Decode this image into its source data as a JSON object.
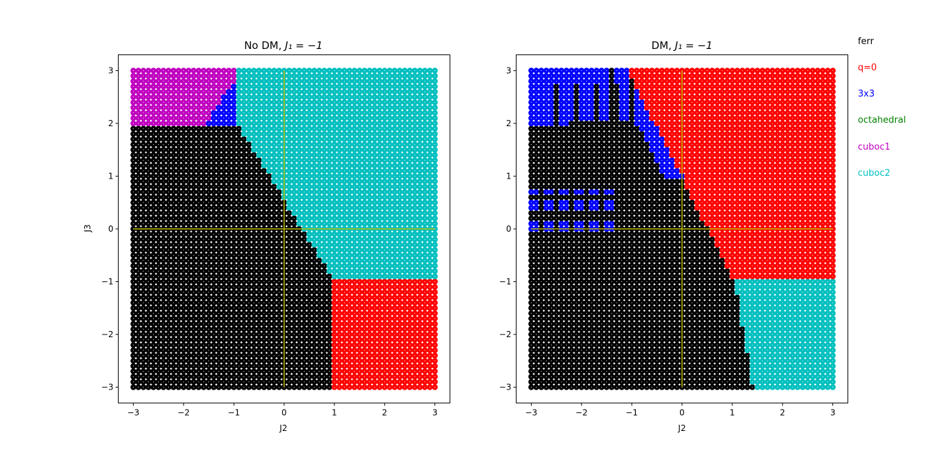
{
  "legend": {
    "placement": "outside-right",
    "entries": [
      {
        "label": "ferr",
        "color": "#000000"
      },
      {
        "label": "q=0",
        "color": "#ff0000"
      },
      {
        "label": "3x3",
        "color": "#0000ff"
      },
      {
        "label": "octahedral",
        "color": "#008000"
      },
      {
        "label": "cuboc1",
        "color": "#bf00bf"
      },
      {
        "label": "cuboc2",
        "color": "#00bfbf"
      }
    ]
  },
  "colors": {
    "ferr": "#000000",
    "q0": "#ff0000",
    "3x3": "#0000ff",
    "octahedral": "#008000",
    "cuboc1": "#bf00bf",
    "cuboc2": "#00bfbf",
    "crosshair": "#bfbf00"
  },
  "chart_data": [
    {
      "type": "scatter",
      "title": "No DM,",
      "title_math": "J₁ = −1",
      "xlabel": "J2",
      "ylabel": "J3",
      "xlim": [
        -3.3,
        3.3
      ],
      "ylim": [
        -3.3,
        3.3
      ],
      "xticks": [
        "−3",
        "−2",
        "−1",
        "0",
        "1",
        "2",
        "3"
      ],
      "yticks": [
        "−3",
        "−2",
        "−1",
        "0",
        "1",
        "2",
        "3"
      ],
      "grid": false,
      "x": {
        "start": -3,
        "stop": 3,
        "count": 61
      },
      "y": {
        "start": -3,
        "stop": 3,
        "count": 61
      },
      "crosshair": {
        "x": 0,
        "y": 0
      },
      "phase_regions": [
        {
          "phase": "q0",
          "rule": "J2 >= 1 and J3 <= -1"
        },
        {
          "phase": "cuboc2",
          "rule": "J3 > -1 and J3 > 0.5 - 1.5*J2 and J2 >= -1"
        },
        {
          "phase": "cuboc2",
          "rule": "J3 >= 2 and J2 >= -1"
        },
        {
          "phase": "cuboc1",
          "rule": "J3 > 2 and J2 < -1 and J3 > 4.3 + 1.5*J2"
        },
        {
          "phase": "3x3",
          "rule": "J3 > 2 and J2 < -1"
        },
        {
          "phase": "ferr",
          "rule": "otherwise"
        }
      ]
    },
    {
      "type": "scatter",
      "title": "DM,",
      "title_math": "J₁ = −1",
      "xlabel": "J2",
      "ylabel": "",
      "xlim": [
        -3.3,
        3.3
      ],
      "ylim": [
        -3.3,
        3.3
      ],
      "xticks": [
        "−3",
        "−2",
        "−1",
        "0",
        "1",
        "2",
        "3"
      ],
      "yticks": [
        "−3",
        "−2",
        "−1",
        "0",
        "1",
        "2",
        "3"
      ],
      "grid": false,
      "x": {
        "start": -3,
        "stop": 3,
        "count": 61
      },
      "y": {
        "start": -3,
        "stop": 3,
        "count": 61
      },
      "crosshair": {
        "x": 0,
        "y": 0
      },
      "phase_regions": [
        {
          "phase": "cuboc2",
          "rule": "J3 <= -1 and J2 > 1.05 + 0.18*(J3+1)"
        },
        {
          "phase": "q0",
          "rule": "J3 > -1 and J2 > (1 - J3)/1.85"
        },
        {
          "phase": "q0",
          "rule": "J3 > 1 and J2 > -1.05 + (3 - J3)*0.55 and J2 > -1.05"
        },
        {
          "phase": "3x3",
          "rule": "J3 > 1 and J3 < 3.2 and J2 > -0.95 and J2 < 0"
        },
        {
          "phase": "3x3",
          "rule": "J3 > 2 and J2 < -1 (striped with ferr)"
        },
        {
          "phase": "3x3",
          "rule": "J3 in [0, 0.8], J2 < -1.3, checkered"
        },
        {
          "phase": "ferr",
          "rule": "otherwise"
        }
      ]
    }
  ]
}
